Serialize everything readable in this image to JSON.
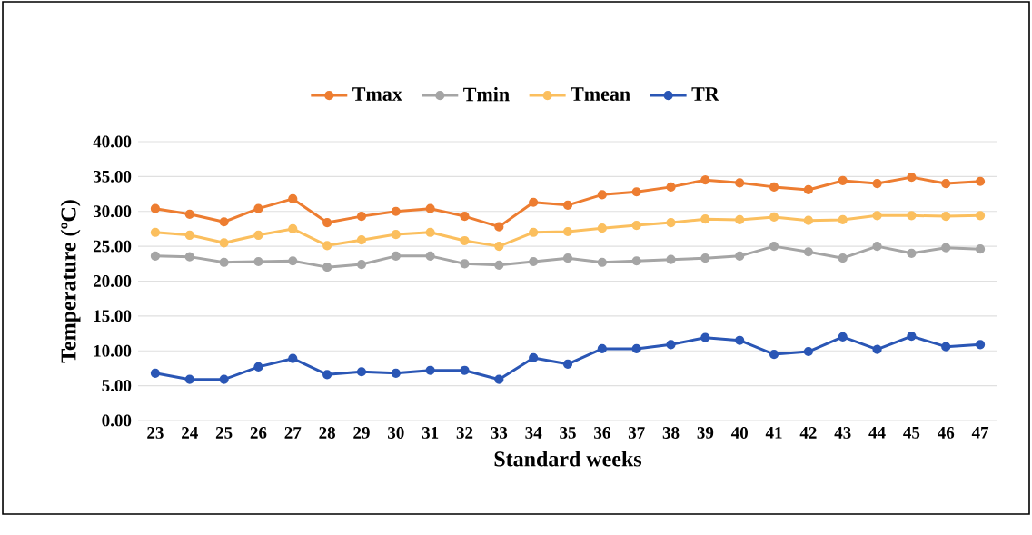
{
  "chart_data": {
    "type": "line",
    "xlabel": "Standard weeks",
    "ylabel": "Temperature (ºC)",
    "categories": [
      "23",
      "24",
      "25",
      "26",
      "27",
      "28",
      "29",
      "30",
      "31",
      "32",
      "33",
      "34",
      "35",
      "36",
      "37",
      "38",
      "39",
      "40",
      "41",
      "42",
      "43",
      "44",
      "45",
      "46",
      "47"
    ],
    "series": [
      {
        "name": "Tmax",
        "color": "#ed7d31",
        "values": [
          30.4,
          29.6,
          28.5,
          30.4,
          31.8,
          28.4,
          29.3,
          30.0,
          30.4,
          29.3,
          27.8,
          31.3,
          30.9,
          32.4,
          32.8,
          33.5,
          34.5,
          34.1,
          33.5,
          33.1,
          34.4,
          34.0,
          34.9,
          34.0,
          34.3
        ]
      },
      {
        "name": "Tmin",
        "color": "#a5a5a5",
        "values": [
          23.6,
          23.5,
          22.7,
          22.8,
          22.9,
          22.0,
          22.4,
          23.6,
          23.6,
          22.5,
          22.3,
          22.8,
          23.3,
          22.7,
          22.9,
          23.1,
          23.3,
          23.6,
          25.0,
          24.2,
          23.3,
          25.0,
          24.0,
          24.8,
          24.6
        ]
      },
      {
        "name": "Tmean",
        "color": "#fbbf5e",
        "values": [
          27.0,
          26.6,
          25.5,
          26.6,
          27.5,
          25.1,
          25.9,
          26.7,
          27.0,
          25.8,
          25.0,
          27.0,
          27.1,
          27.6,
          28.0,
          28.4,
          28.9,
          28.8,
          29.2,
          28.7,
          28.8,
          29.4,
          29.4,
          29.3,
          29.4
        ]
      },
      {
        "name": "TR",
        "color": "#2a56b5",
        "values": [
          6.8,
          5.9,
          5.9,
          7.7,
          8.9,
          6.6,
          7.0,
          6.8,
          7.2,
          7.2,
          5.9,
          9.0,
          8.1,
          10.3,
          10.3,
          10.9,
          11.9,
          11.5,
          9.5,
          9.9,
          12.0,
          10.2,
          12.1,
          10.6,
          10.9
        ]
      }
    ],
    "ylim": [
      0,
      40
    ],
    "yticks": [
      {
        "value": 0,
        "label": "0.00"
      },
      {
        "value": 5,
        "label": "5.00"
      },
      {
        "value": 10,
        "label": "10.00"
      },
      {
        "value": 15,
        "label": "15.00"
      },
      {
        "value": 20,
        "label": "20.00"
      },
      {
        "value": 25,
        "label": "25.00"
      },
      {
        "value": 30,
        "label": "30.00"
      },
      {
        "value": 35,
        "label": "35.00"
      },
      {
        "value": 40,
        "label": "40.00"
      }
    ],
    "grid": "y",
    "legend": "top",
    "marker": "circle",
    "line_style": "solid"
  }
}
